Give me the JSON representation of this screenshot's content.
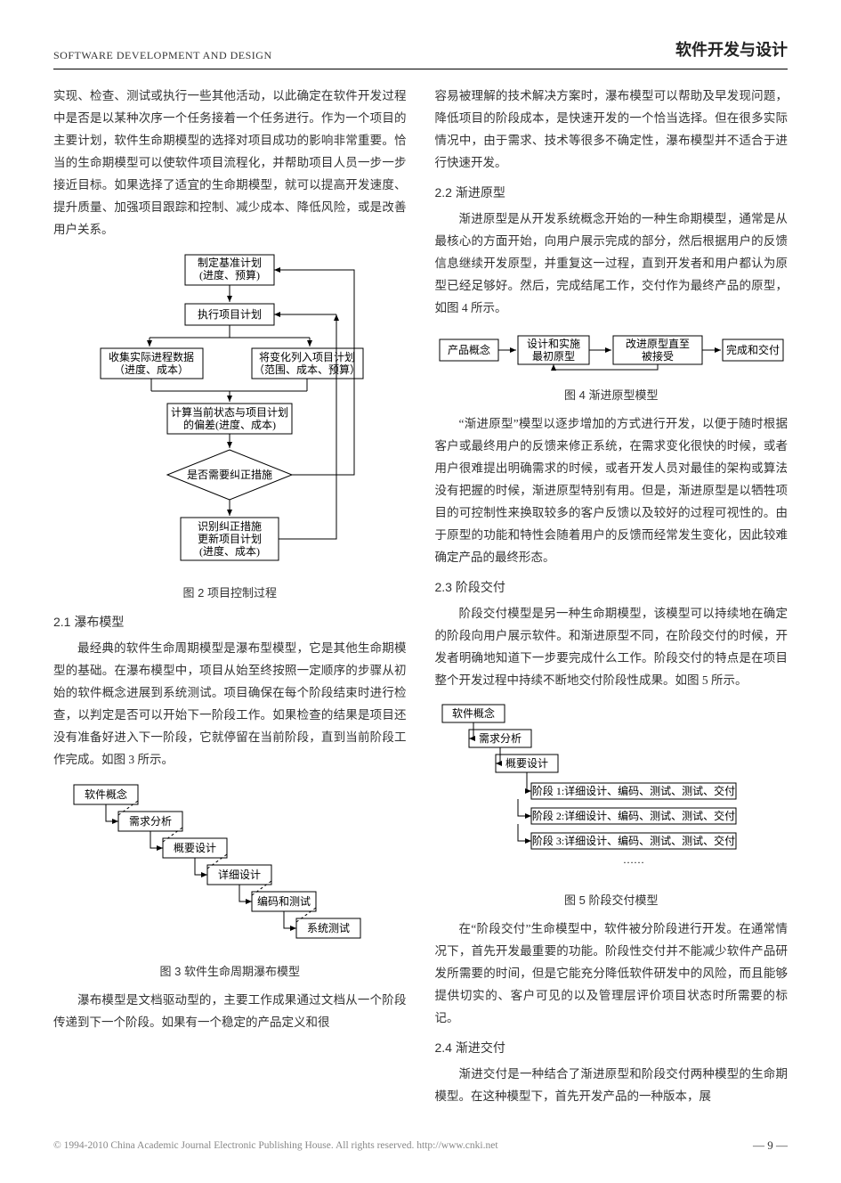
{
  "header": {
    "left": "SOFTWARE DEVELOPMENT AND DESIGN",
    "right": "软件开发与设计"
  },
  "left_col": {
    "p1": "实现、检查、测试或执行一些其他活动，以此确定在软件开发过程中是否是以某种次序一个任务接着一个任务进行。作为一个项目的主要计划，软件生命期模型的选择对项目成功的影响非常重要。恰当的生命期模型可以使软件项目流程化，并帮助项目人员一步一步接近目标。如果选择了适宜的生命期模型，就可以提高开发速度、提升质量、加强项目跟踪和控制、减少成本、降低风险，或是改善用户关系。",
    "fig2": {
      "caption": "图 2  项目控制过程",
      "nodes": {
        "n1a": "制定基准计划",
        "n1b": "(进度、预算)",
        "n2": "执行项目计划",
        "n3a": "收集实际进程数据",
        "n3b": "（进度、成本）",
        "n4a": "将变化列入项目计划",
        "n4b": "（范围、成本、预算）",
        "n5a": "计算当前状态与项目计划",
        "n5b": "的偏差(进度、成本)",
        "n6": "是否需要纠正措施",
        "n7a": "识别纠正措施",
        "n7b": "更新项目计划",
        "n7c": "(进度、成本)"
      }
    },
    "s21": "2.1 瀑布模型",
    "p2": "最经典的软件生命周期模型是瀑布型模型，它是其他生命期模型的基础。在瀑布模型中，项目从始至终按照一定顺序的步骤从初始的软件概念进展到系统测试。项目确保在每个阶段结束时进行检查，以判定是否可以开始下一阶段工作。如果检查的结果是项目还没有准备好进入下一阶段，它就停留在当前阶段，直到当前阶段工作完成。如图 3 所示。",
    "fig3": {
      "caption": "图 3  软件生命周期瀑布模型",
      "steps": [
        "软件概念",
        "需求分析",
        "概要设计",
        "详细设计",
        "编码和测试",
        "系统测试"
      ]
    },
    "p3": "瀑布模型是文档驱动型的，主要工作成果通过文档从一个阶段传递到下一个阶段。如果有一个稳定的产品定义和很"
  },
  "right_col": {
    "p1": "容易被理解的技术解决方案时，瀑布模型可以帮助及早发现问题，降低项目的阶段成本，是快速开发的一个恰当选择。但在很多实际情况中，由于需求、技术等很多不确定性，瀑布模型并不适合于进行快速开发。",
    "s22": "2.2  渐进原型",
    "p2": "渐进原型是从开发系统概念开始的一种生命期模型，通常是从最核心的方面开始，向用户展示完成的部分，然后根据用户的反馈信息继续开发原型，并重复这一过程，直到开发者和用户都认为原型已经足够好。然后，完成结尾工作，交付作为最终产品的原型，如图 4 所示。",
    "fig4": {
      "caption": "图 4  渐进原型模型",
      "n1": "产品概念",
      "n2a": "设计和实施",
      "n2b": "最初原型",
      "n3a": "改进原型直至",
      "n3b": "被接受",
      "n4": "完成和交付"
    },
    "p3": "“渐进原型”模型以逐步增加的方式进行开发，以便于随时根据客户或最终用户的反馈来修正系统，在需求变化很快的时候，或者用户很难提出明确需求的时候，或者开发人员对最佳的架构或算法没有把握的时候，渐进原型特别有用。但是，渐进原型是以牺牲项目的可控制性来换取较多的客户反馈以及较好的过程可视性的。由于原型的功能和特性会随着用户的反馈而经常发生变化，因此较难确定产品的最终形态。",
    "s23": "2.3  阶段交付",
    "p4": "阶段交付模型是另一种生命期模型，该模型可以持续地在确定的阶段向用户展示软件。和渐进原型不同，在阶段交付的时候，开发者明确地知道下一步要完成什么工作。阶段交付的特点是在项目整个开发过程中持续不断地交付阶段性成果。如图 5 所示。",
    "fig5": {
      "caption": "图 5  阶段交付模型",
      "top": [
        "软件概念",
        "需求分析",
        "概要设计"
      ],
      "stages": [
        "阶段 1:详细设计、编码、测试、测试、交付",
        "阶段 2:详细设计、编码、测试、测试、交付",
        "阶段 3:详细设计、编码、测试、测试、交付"
      ],
      "dots": "……"
    },
    "p5": "在“阶段交付”生命模型中，软件被分阶段进行开发。在通常情况下，首先开发最重要的功能。阶段性交付并不能减少软件产品研发所需要的时间，但是它能充分降低软件研发中的风险，而且能够提供切实的、客户可见的以及管理层评价项目状态时所需要的标记。",
    "s24": "2.4  渐进交付",
    "p6": "渐进交付是一种结合了渐进原型和阶段交付两种模型的生命期模型。在这种模型下，首先开发产品的一种版本，展"
  },
  "footer": {
    "copyright": "© 1994-2010 China Academic Journal Electronic Publishing House. All rights reserved.    http://www.cnki.net",
    "page": "— 9 —"
  }
}
